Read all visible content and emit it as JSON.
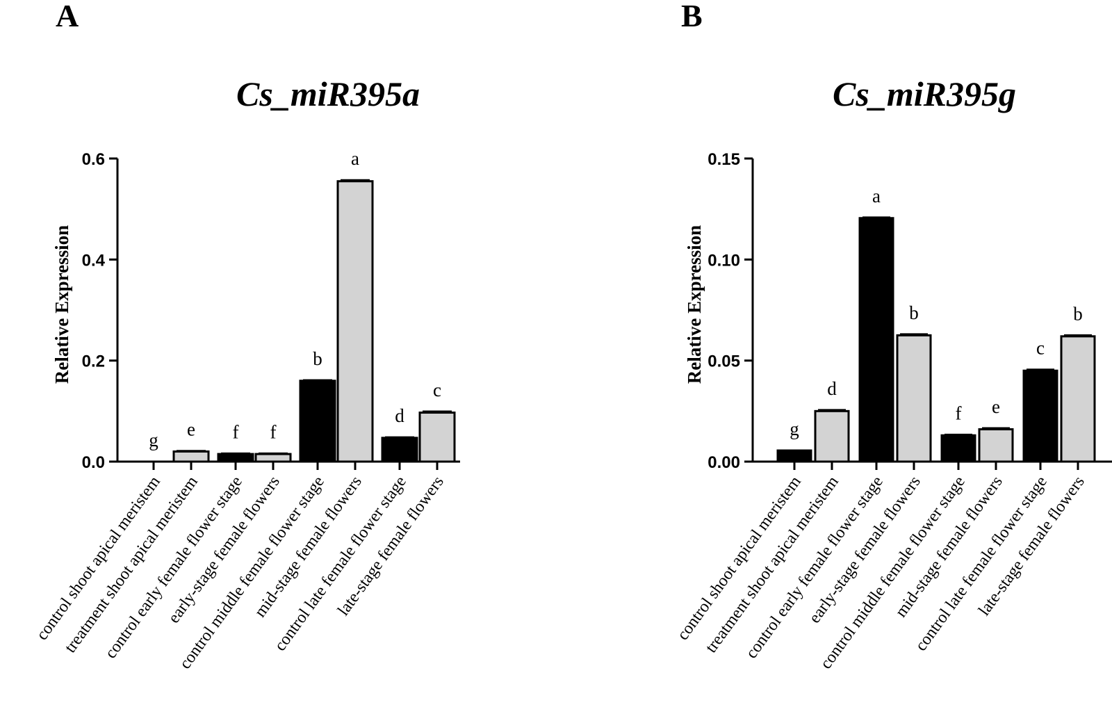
{
  "panels": [
    {
      "letter": "A",
      "chart_data": {
        "type": "bar",
        "title": "Cs_miR395a",
        "xlabel": "",
        "ylabel": "Relative Expression",
        "ylim": [
          0,
          0.6
        ],
        "yticks": [
          0.0,
          0.2,
          0.4,
          0.6
        ],
        "ytick_labels": [
          "0.0",
          "0.2",
          "0.4",
          "0.6"
        ],
        "categories": [
          "control shoot apical meristem",
          "treatment shoot apical meristem",
          "control early female flower stage",
          "early-stage female flowers",
          "control middle female flower stage",
          "mid-stage female flowers",
          "control late female flower stage",
          "late-stage female flowers"
        ],
        "values": [
          0.0,
          0.02,
          0.015,
          0.015,
          0.16,
          0.555,
          0.047,
          0.097
        ],
        "errors": [
          0.0,
          0.001,
          0.001,
          0.001,
          0.001,
          0.002,
          0.001,
          0.002
        ],
        "significance": [
          "g",
          "e",
          "f",
          "f",
          "b",
          "a",
          "d",
          "c"
        ],
        "colors": [
          "#000000",
          "#d3d3d3",
          "#000000",
          "#d3d3d3",
          "#000000",
          "#d3d3d3",
          "#000000",
          "#d3d3d3"
        ],
        "grid": false
      }
    },
    {
      "letter": "B",
      "chart_data": {
        "type": "bar",
        "title": "Cs_miR395g",
        "xlabel": "",
        "ylabel": "Relative Expression",
        "ylim": [
          0,
          0.15
        ],
        "yticks": [
          0.0,
          0.05,
          0.1,
          0.15
        ],
        "ytick_labels": [
          "0.00",
          "0.05",
          "0.10",
          "0.15"
        ],
        "categories": [
          "control shoot apical meristem",
          "treatment shoot apical meristem",
          "control early female flower stage",
          "early-stage female flowers",
          "control middle female flower stage",
          "mid-stage female flowers",
          "control late female flower stage",
          "late-stage female flowers"
        ],
        "values": [
          0.0055,
          0.025,
          0.1205,
          0.0625,
          0.013,
          0.016,
          0.045,
          0.062
        ],
        "errors": [
          0.0,
          0.0005,
          0.0003,
          0.0005,
          0.0003,
          0.0005,
          0.0005,
          0.0005
        ],
        "significance": [
          "g",
          "d",
          "a",
          "b",
          "f",
          "e",
          "c",
          "b"
        ],
        "colors": [
          "#000000",
          "#d3d3d3",
          "#000000",
          "#d3d3d3",
          "#000000",
          "#d3d3d3",
          "#000000",
          "#d3d3d3"
        ],
        "grid": false
      }
    }
  ]
}
